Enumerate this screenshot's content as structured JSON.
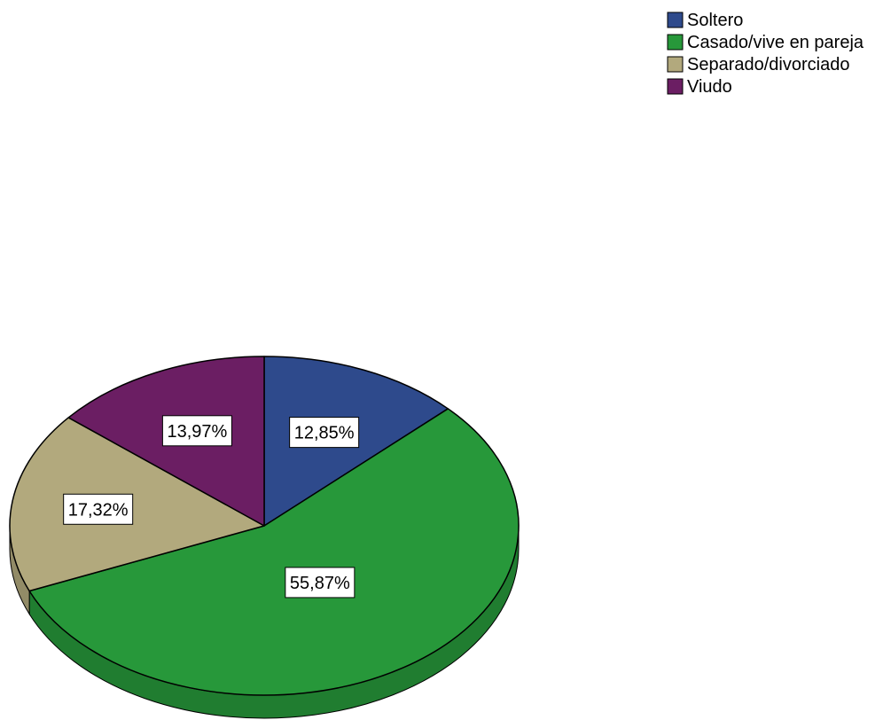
{
  "chart_data": {
    "type": "pie",
    "title": "",
    "legend_placement": "top-right",
    "three_d": true,
    "slices": [
      {
        "label": "Soltero",
        "value": 12.85,
        "value_label": "12,85%",
        "color": "#2e4a8c"
      },
      {
        "label": "Casado/vive en pareja",
        "value": 55.87,
        "value_label": "55,87%",
        "color": "#27983a"
      },
      {
        "label": "Separado/divorciado",
        "value": 17.32,
        "value_label": "17,32%",
        "color": "#b2a97d"
      },
      {
        "label": "Viudo",
        "value": 13.97,
        "value_label": "13,97%",
        "color": "#6b1e63"
      }
    ]
  }
}
